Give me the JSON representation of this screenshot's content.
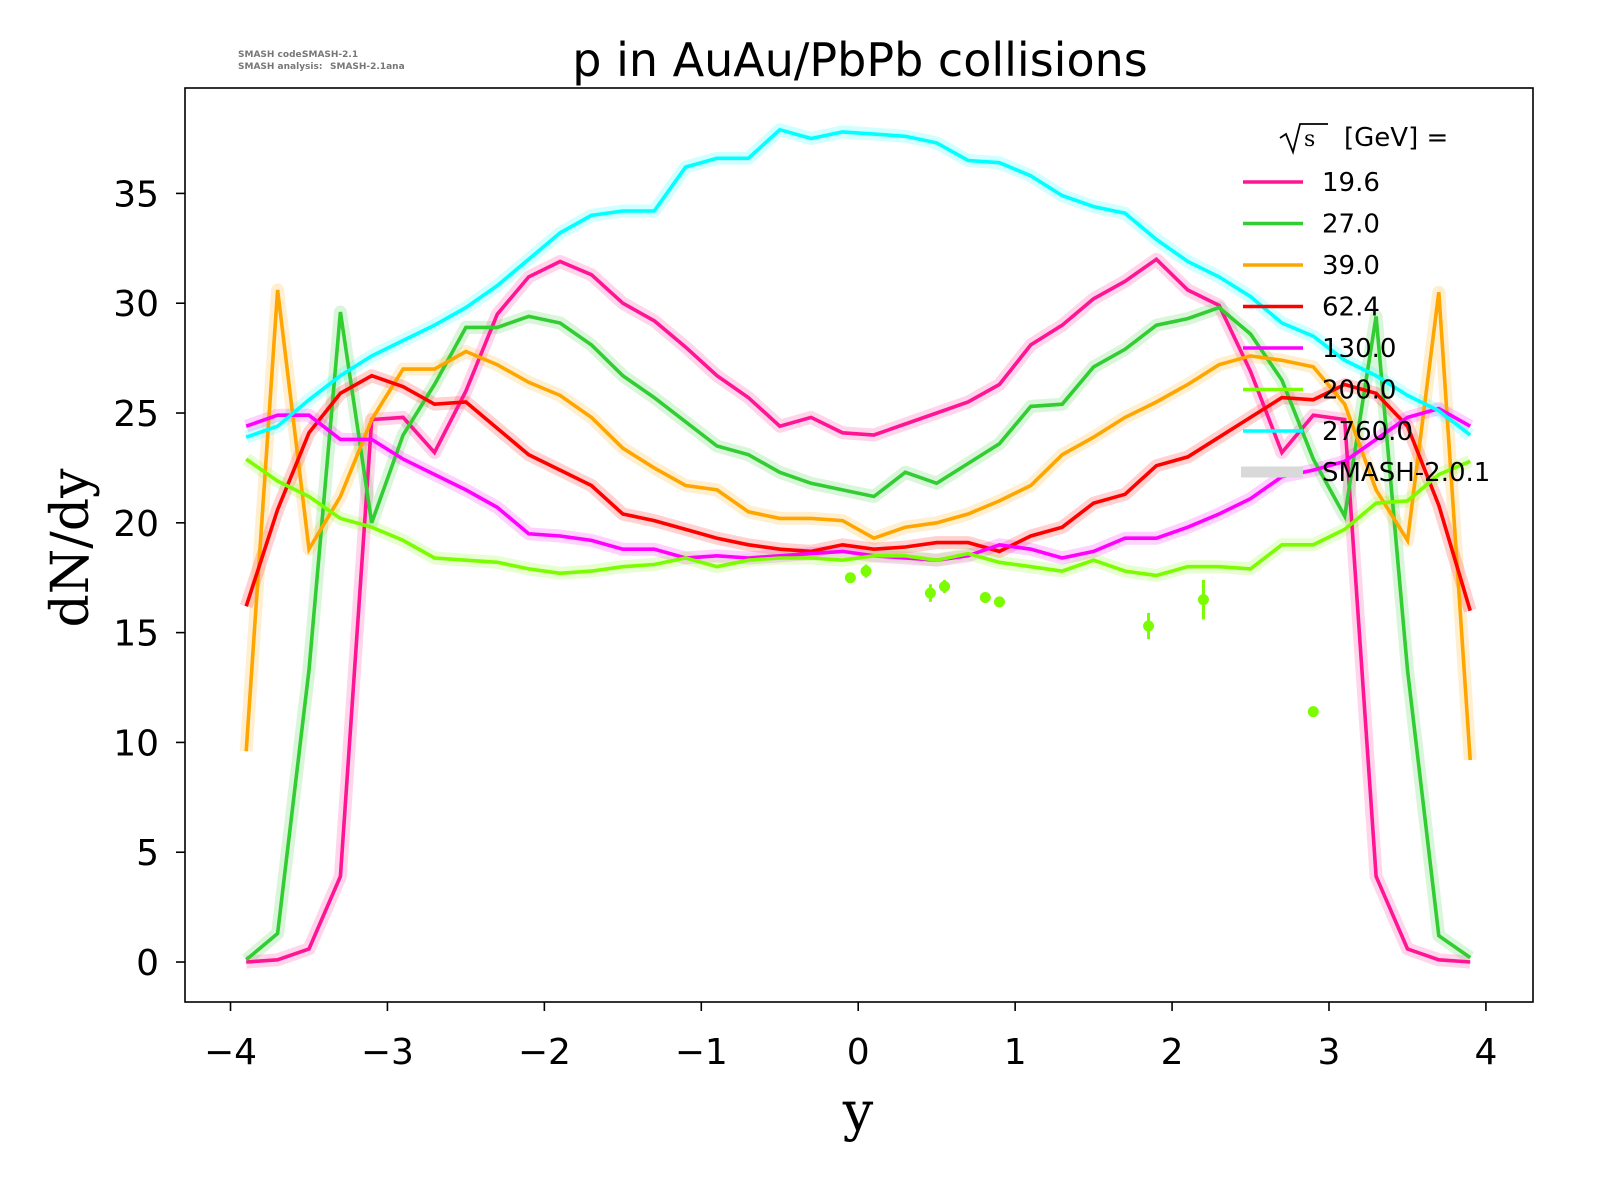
{
  "chart_data": {
    "type": "line",
    "title": "p in AuAu/PbPb collisions",
    "xlabel": "y",
    "ylabel": "dN/dy",
    "xlim": [
      -4.29,
      4.3
    ],
    "ylim": [
      -1.82,
      39.8
    ],
    "xticks": [
      -4,
      -3,
      -2,
      -1,
      0,
      1,
      2,
      3,
      4
    ],
    "xtick_labels": [
      "−4",
      "−3",
      "−2",
      "−1",
      "0",
      "1",
      "2",
      "3",
      "4"
    ],
    "yticks": [
      0,
      5,
      10,
      15,
      20,
      25,
      30,
      35
    ],
    "ytick_labels": [
      "0",
      "5",
      "10",
      "15",
      "20",
      "25",
      "30",
      "35"
    ],
    "grid": false,
    "legend": {
      "placement": "top-right",
      "title_sqrt": "s",
      "title_rest": "[GeV] =",
      "band_label": "SMASH-2.0.1",
      "band_color": "#d9d9d9"
    },
    "watermark": {
      "line1_label": "SMASH code:",
      "line1_value": "SMASH-2.1",
      "line2_label": "SMASH analysis:",
      "line2_value": "SMASH-2.1ana"
    },
    "x": [
      -3.9,
      -3.7,
      -3.5,
      -3.3,
      -3.1,
      -2.9,
      -2.7,
      -2.5,
      -2.3,
      -2.1,
      -1.9,
      -1.7,
      -1.5,
      -1.3,
      -1.1,
      -0.9,
      -0.7,
      -0.5,
      -0.3,
      -0.1,
      0.1,
      0.3,
      0.5,
      0.7,
      0.9,
      1.1,
      1.3,
      1.5,
      1.7,
      1.9,
      2.1,
      2.3,
      2.5,
      2.7,
      2.9,
      3.1,
      3.3,
      3.5,
      3.7,
      3.9
    ],
    "series": [
      {
        "name": "19.6",
        "color": "#ff1493",
        "values": [
          0,
          0.1,
          0.6,
          3.9,
          24.7,
          24.8,
          23.2,
          26.0,
          29.5,
          31.2,
          31.9,
          31.3,
          30.0,
          29.2,
          28.0,
          26.7,
          25.7,
          24.4,
          24.8,
          24.1,
          24.0,
          24.5,
          25.0,
          25.5,
          26.3,
          28.1,
          29.0,
          30.2,
          31.0,
          32.0,
          30.6,
          29.9,
          26.9,
          23.2,
          24.9,
          24.7,
          3.9,
          0.6,
          0.1,
          0
        ]
      },
      {
        "name": "27.0",
        "color": "#32cd32",
        "values": [
          0.1,
          1.3,
          13.3,
          29.6,
          20.0,
          24.0,
          26.3,
          28.9,
          28.9,
          29.4,
          29.1,
          28.1,
          26.7,
          25.7,
          24.6,
          23.5,
          23.1,
          22.3,
          21.8,
          21.5,
          21.2,
          22.3,
          21.8,
          22.7,
          23.6,
          25.3,
          25.4,
          27.1,
          27.9,
          29.0,
          29.3,
          29.8,
          28.6,
          26.5,
          22.9,
          20.3,
          29.4,
          13.3,
          1.2,
          0.2
        ]
      },
      {
        "name": "39.0",
        "color": "#ffa500",
        "values": [
          9.6,
          30.6,
          18.8,
          21.2,
          24.7,
          27.0,
          27.0,
          27.8,
          27.2,
          26.4,
          25.8,
          24.8,
          23.4,
          22.5,
          21.7,
          21.5,
          20.5,
          20.2,
          20.2,
          20.1,
          19.3,
          19.8,
          20.0,
          20.4,
          21.0,
          21.7,
          23.1,
          23.9,
          24.8,
          25.5,
          26.3,
          27.2,
          27.6,
          27.4,
          27.1,
          25.4,
          21.5,
          19.2,
          30.5,
          9.2
        ]
      },
      {
        "name": "62.4",
        "color": "#ff0000",
        "values": [
          16.2,
          20.6,
          24.1,
          25.9,
          26.7,
          26.2,
          25.4,
          25.5,
          24.3,
          23.1,
          22.4,
          21.7,
          20.4,
          20.1,
          19.7,
          19.3,
          19.0,
          18.8,
          18.7,
          19.0,
          18.8,
          18.9,
          19.1,
          19.1,
          18.7,
          19.4,
          19.8,
          20.9,
          21.3,
          22.6,
          23.0,
          23.9,
          24.8,
          25.7,
          25.6,
          26.3,
          25.9,
          24.4,
          20.8,
          16.0
        ]
      },
      {
        "name": "130.0",
        "color": "#ff00ff",
        "values": [
          24.4,
          24.9,
          24.9,
          23.8,
          23.8,
          22.9,
          22.2,
          21.5,
          20.7,
          19.5,
          19.4,
          19.2,
          18.8,
          18.8,
          18.4,
          18.5,
          18.4,
          18.5,
          18.6,
          18.7,
          18.5,
          18.4,
          18.3,
          18.5,
          19.0,
          18.8,
          18.4,
          18.7,
          19.3,
          19.3,
          19.8,
          20.4,
          21.1,
          22.1,
          22.4,
          22.8,
          23.8,
          24.8,
          25.2,
          24.4
        ]
      },
      {
        "name": "200.0",
        "color": "#7cfc00",
        "values": [
          22.9,
          21.9,
          21.2,
          20.2,
          19.8,
          19.2,
          18.4,
          18.3,
          18.2,
          17.9,
          17.7,
          17.8,
          18.0,
          18.1,
          18.4,
          18.0,
          18.3,
          18.4,
          18.4,
          18.3,
          18.5,
          18.5,
          18.3,
          18.6,
          18.2,
          18.0,
          17.8,
          18.3,
          17.8,
          17.6,
          18.0,
          18.0,
          17.9,
          19.0,
          19.0,
          19.7,
          20.9,
          21.0,
          22.2,
          22.8
        ]
      },
      {
        "name": "2760.0",
        "color": "#00ffff",
        "values": [
          23.9,
          24.4,
          25.6,
          26.7,
          27.6,
          28.3,
          29.0,
          29.8,
          30.8,
          32.0,
          33.2,
          34.0,
          34.2,
          34.2,
          36.2,
          36.6,
          36.6,
          37.9,
          37.5,
          37.8,
          37.7,
          37.6,
          37.3,
          36.5,
          36.4,
          35.8,
          34.9,
          34.4,
          34.1,
          32.9,
          31.9,
          31.2,
          30.3,
          29.1,
          28.5,
          27.4,
          26.7,
          25.8,
          25.1,
          24.0
        ]
      }
    ],
    "experimental_points": {
      "series": "200.0",
      "color": "#7cfc00",
      "points": [
        {
          "x": -0.05,
          "y": 17.5,
          "err": 0.2
        },
        {
          "x": 0.05,
          "y": 17.8,
          "err": 0.3
        },
        {
          "x": 0.46,
          "y": 16.8,
          "err": 0.4
        },
        {
          "x": 0.55,
          "y": 17.1,
          "err": 0.3
        },
        {
          "x": 0.81,
          "y": 16.6,
          "err": 0.2
        },
        {
          "x": 0.9,
          "y": 16.4,
          "err": 0.2
        },
        {
          "x": 1.85,
          "y": 15.3,
          "err": 0.6
        },
        {
          "x": 2.2,
          "y": 16.5,
          "err": 0.9
        },
        {
          "x": 2.9,
          "y": 11.4,
          "err": 0.1
        }
      ]
    }
  }
}
